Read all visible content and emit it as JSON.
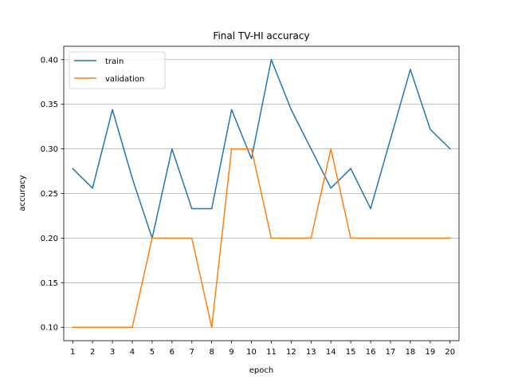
{
  "chart_data": {
    "type": "line",
    "title": "Final TV-HI accuracy",
    "xlabel": "epoch",
    "ylabel": "accuracy",
    "x": [
      1,
      2,
      3,
      4,
      5,
      6,
      7,
      8,
      9,
      10,
      11,
      12,
      13,
      14,
      15,
      16,
      17,
      18,
      19,
      20
    ],
    "xlim": [
      0.55,
      20.45
    ],
    "ylim": [
      0.085,
      0.415
    ],
    "yticks": [
      0.1,
      0.15,
      0.2,
      0.25,
      0.3,
      0.35,
      0.4
    ],
    "ytick_labels": [
      "0.10",
      "0.15",
      "0.20",
      "0.25",
      "0.30",
      "0.35",
      "0.40"
    ],
    "xtick_labels": [
      "1",
      "2",
      "3",
      "4",
      "5",
      "6",
      "7",
      "8",
      "9",
      "10",
      "11",
      "12",
      "13",
      "14",
      "15",
      "16",
      "17",
      "18",
      "19",
      "20"
    ],
    "grid": "horizontal",
    "legend_position": "top-left",
    "series": [
      {
        "name": "train",
        "color": "#1f77b4",
        "values": [
          0.278,
          0.256,
          0.344,
          0.267,
          0.2,
          0.3,
          0.233,
          0.233,
          0.344,
          0.289,
          0.4,
          0.344,
          0.3,
          0.256,
          0.278,
          0.233,
          0.311,
          0.389,
          0.322,
          0.3
        ]
      },
      {
        "name": "validation",
        "color": "#ff7f0e",
        "values": [
          0.1,
          0.1,
          0.1,
          0.1,
          0.2,
          0.2,
          0.2,
          0.1,
          0.3,
          0.3,
          0.2,
          0.2,
          0.2,
          0.3,
          0.2,
          0.2,
          0.2,
          0.2,
          0.2,
          0.2
        ]
      }
    ]
  }
}
